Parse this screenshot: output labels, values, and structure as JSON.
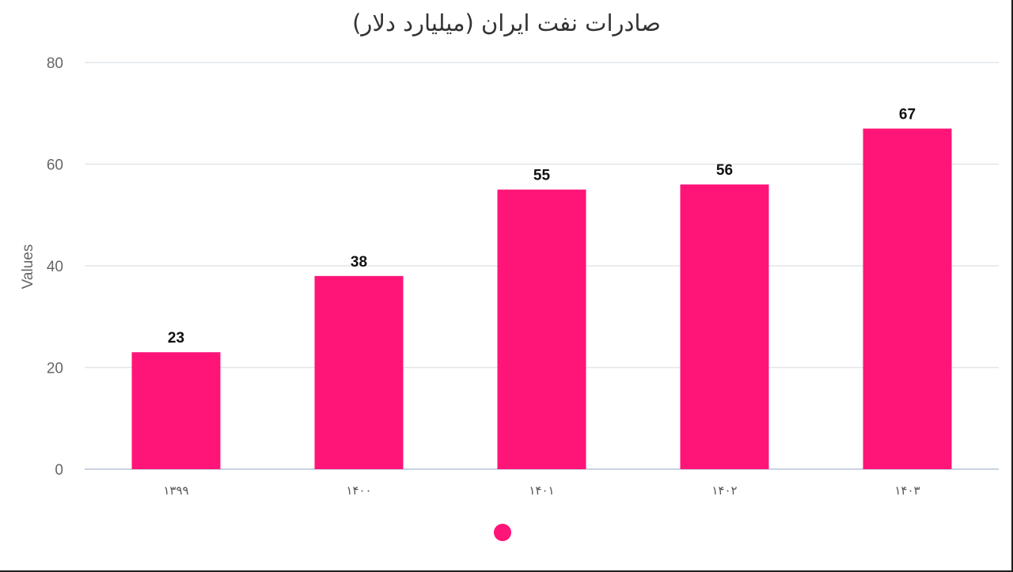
{
  "chart_data": {
    "type": "bar",
    "title": "صادرات نفت ایران (میلیارد دلار)",
    "ylabel": "Values",
    "xlabel": "",
    "categories": [
      "۱۳۹۹",
      "۱۴۰۰",
      "۱۴۰۱",
      "۱۴۰۲",
      "۱۴۰۳"
    ],
    "values": [
      23,
      38,
      55,
      56,
      67
    ],
    "ylim": [
      0,
      80
    ],
    "yticks": [
      0,
      20,
      40,
      60,
      80
    ],
    "grid": true,
    "legend": "bottom-center",
    "colors": {
      "bar": "#ff1478",
      "grid": "#e2e6ea",
      "axis": "#c8d2e0"
    }
  }
}
